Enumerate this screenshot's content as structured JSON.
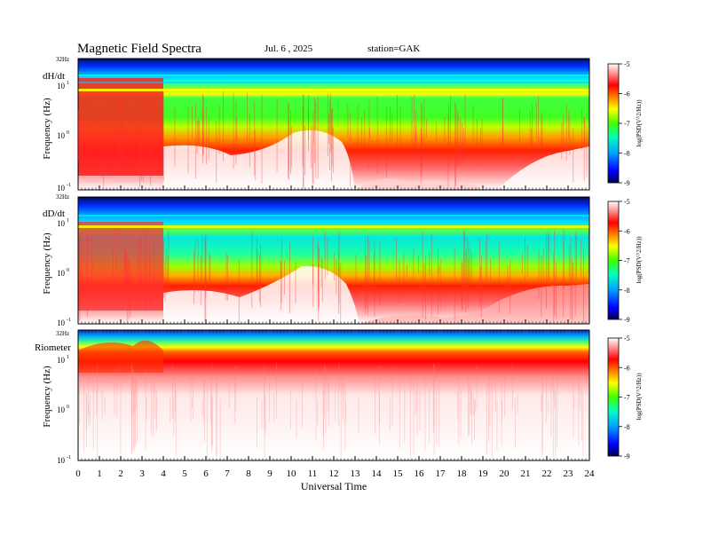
{
  "header": {
    "title": "Magnetic  Field  Spectra",
    "date": "Jul.  6  , 2025",
    "station": "station=GAK"
  },
  "chart_data": {
    "type": "heatmap",
    "xlabel": "Universal Time",
    "x_ticks": [
      "0",
      "1",
      "2",
      "3",
      "4",
      "5",
      "6",
      "7",
      "8",
      "9",
      "10",
      "11",
      "12",
      "13",
      "14",
      "15",
      "16",
      "17",
      "18",
      "19",
      "20",
      "21",
      "22",
      "23",
      "24"
    ],
    "xlim": [
      0,
      24
    ],
    "y_scale": "log",
    "colorbar": {
      "label": "log(PSD(V^2/Hz))",
      "ticks": [
        "-5",
        "-6",
        "-7",
        "-8",
        "-9"
      ],
      "range": [
        -9,
        -5
      ],
      "colors": [
        "#000060",
        "#0000ff",
        "#00bfff",
        "#00ff80",
        "#80ff00",
        "#ffff00",
        "#ff8000",
        "#ff0000",
        "#ffffff"
      ]
    },
    "panels": [
      {
        "name": "dH/dt",
        "ylabel": "Frequency  (Hz)",
        "y_ticks": {
          "top": "32Hz",
          "t1": "10",
          "t1sup": "1",
          "t0": "10",
          "t0sup": "0",
          "tm1": "10",
          "tm1sup": "-1"
        },
        "ylim": [
          0.1,
          32
        ]
      },
      {
        "name": "dD/dt",
        "ylabel": "Frequency  (Hz)",
        "y_ticks": {
          "top": "32Hz",
          "t1": "10",
          "t1sup": "1",
          "t0": "10",
          "t0sup": "0",
          "tm1": "10",
          "tm1sup": "-1"
        },
        "ylim": [
          0.1,
          32
        ]
      },
      {
        "name": "Riometer",
        "ylabel": "Frequency  (Hz)",
        "y_ticks": {
          "top": "32Hz",
          "t1": "10",
          "t1sup": "1",
          "t0": "10",
          "t0sup": "0",
          "tm1": "10",
          "tm1sup": "-1"
        },
        "ylim": [
          0.1,
          32
        ]
      }
    ]
  }
}
